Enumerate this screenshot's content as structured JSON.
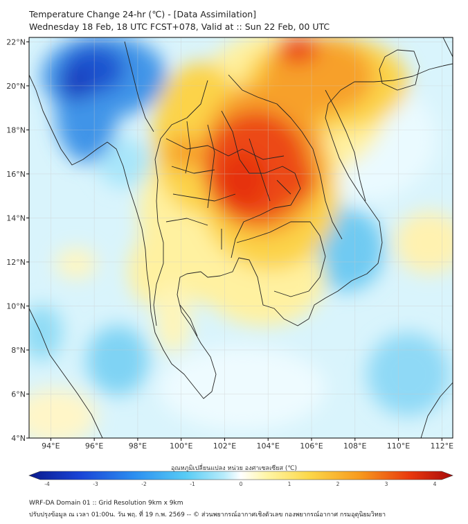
{
  "title": {
    "line1": "Temperature Change 24-hr (℃) - [Data Assimilation]",
    "line2": "Wednesday 18 Feb, 18 UTC FCST+078, Valid at :: Sun 22 Feb, 00 UTC"
  },
  "map": {
    "lon_range": [
      93,
      112.5
    ],
    "lat_range": [
      4,
      22.2
    ],
    "lon_ticks": [
      {
        "value": 94,
        "label": "94°E"
      },
      {
        "value": 96,
        "label": "96°E"
      },
      {
        "value": 98,
        "label": "98°E"
      },
      {
        "value": 100,
        "label": "100°E"
      },
      {
        "value": 102,
        "label": "102°E"
      },
      {
        "value": 104,
        "label": "104°E"
      },
      {
        "value": 106,
        "label": "106°E"
      },
      {
        "value": 108,
        "label": "108°E"
      },
      {
        "value": 110,
        "label": "110°E"
      },
      {
        "value": 112,
        "label": "112°E"
      }
    ],
    "lat_ticks": [
      {
        "value": 4,
        "label": "4°N"
      },
      {
        "value": 6,
        "label": "6°N"
      },
      {
        "value": 8,
        "label": "8°N"
      },
      {
        "value": 10,
        "label": "10°N"
      },
      {
        "value": 12,
        "label": "12°N"
      },
      {
        "value": 14,
        "label": "14°N"
      },
      {
        "value": 16,
        "label": "16°N"
      },
      {
        "value": 18,
        "label": "18°N"
      },
      {
        "value": 20,
        "label": "20°N"
      },
      {
        "value": 22,
        "label": "22°N"
      }
    ]
  },
  "colorbar": {
    "label": "อุณหภูมิเปลี่ยนแปลง หน่วย องศาเซลเซียส (℃)",
    "range": [
      -4,
      4
    ],
    "ticks": [
      "-4",
      "-3",
      "-2",
      "-1",
      "0",
      "1",
      "2",
      "3",
      "4"
    ],
    "stops": [
      "#0a1a8c",
      "#1a44d6",
      "#2c8ff0",
      "#58ccf5",
      "#b8ecfb",
      "#ffffff",
      "#fff6a8",
      "#fcd84a",
      "#f79a1e",
      "#e8380e",
      "#a80a0a"
    ]
  },
  "footer": {
    "line1": "WRF-DA Domain 01 :: Grid Resolution 9km x 9km",
    "line2": "ปรับปรุงข้อมูล ณ เวลา 01:00น. วัน พฤ. ที่ 19 ก.พ. 2569 -- © ส่วนพยากรณ์อากาศเชิงตัวเลข กองพยากรณ์อากาศ กรมอุตุนิยมวิทยา"
  }
}
